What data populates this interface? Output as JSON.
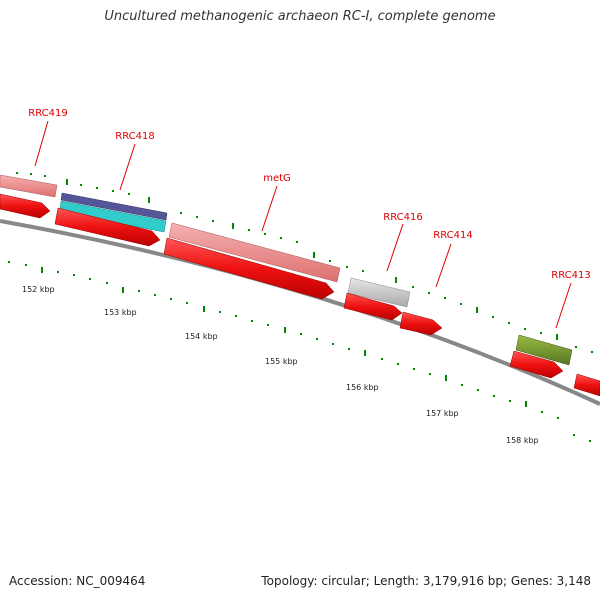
{
  "header": {
    "title": "Uncultured methanogenic archaeon RC-I, complete genome"
  },
  "footer": {
    "accession": "Accession: NC_009464",
    "summary": "Topology: circular; Length: 3,179,916 bp; Genes: 3,148"
  },
  "colors": {
    "gene_label": "#dd0000",
    "cds": "#ee1111",
    "ruler_tick": "#008800",
    "backbone": "#888888",
    "rrc419": "#ee8888",
    "rrc418_top": "#555599",
    "rrc418_bottom": "#33cccc",
    "metg": "#ee8888",
    "rrc416": "#cccccc",
    "rrc413": "#779933"
  },
  "map": {
    "kbp_labels": [
      "152 kbp",
      "153 kbp",
      "154 kbp",
      "155 kbp",
      "156 kbp",
      "157 kbp",
      "158 kbp"
    ],
    "genes": [
      {
        "label": "RRC419"
      },
      {
        "label": "RRC418"
      },
      {
        "label": "metG"
      },
      {
        "label": "RRC416"
      },
      {
        "label": "RRC414"
      },
      {
        "label": "RRC413"
      }
    ]
  }
}
